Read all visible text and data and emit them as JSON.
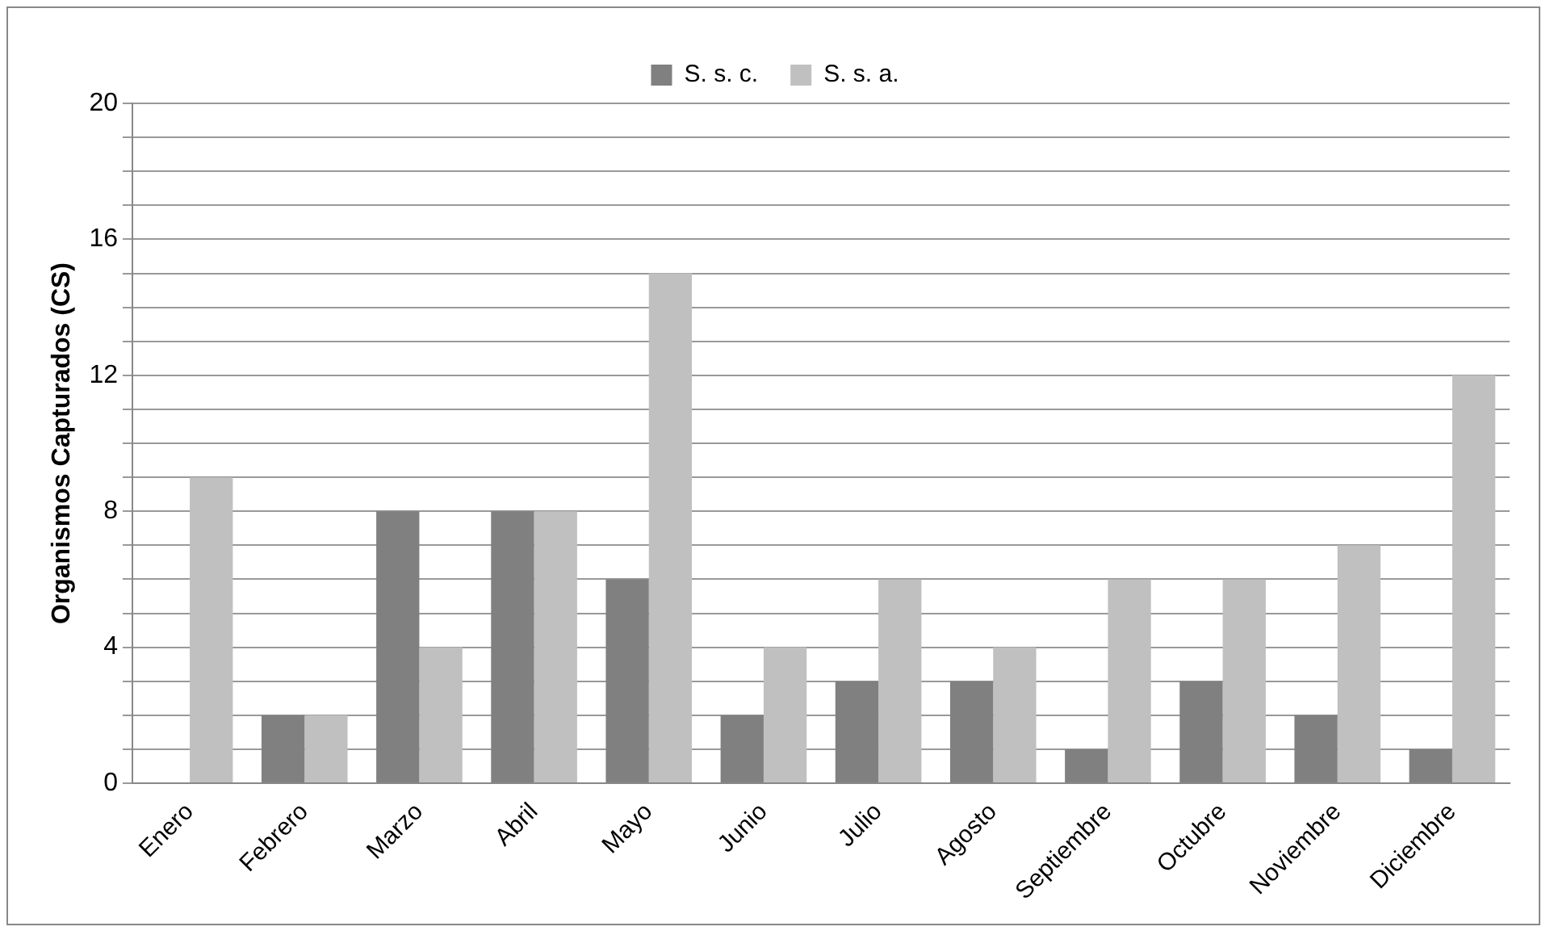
{
  "chart_data": {
    "type": "bar",
    "ylabel": "Organismos Capturados (CS)",
    "categories": [
      "Enero",
      "Febrero",
      "Marzo",
      "Abril",
      "Mayo",
      "Junio",
      "Julio",
      "Agosto",
      "Septiembre",
      "Octubre",
      "Noviembre",
      "Diciembre"
    ],
    "series": [
      {
        "name": "S. s. c.",
        "color": "#808080",
        "values": [
          0,
          2,
          8,
          8,
          6,
          2,
          3,
          3,
          1,
          3,
          2,
          1
        ]
      },
      {
        "name": "S. s. a.",
        "color": "#c0c0c0",
        "values": [
          9,
          2,
          4,
          8,
          15,
          4,
          6,
          4,
          6,
          6,
          7,
          12
        ]
      }
    ],
    "ylim": [
      0,
      20
    ],
    "yticks": [
      0,
      {
        "value": 1,
        "label": null
      },
      {
        "value": 2,
        "label": null
      },
      {
        "value": 3,
        "label": null
      },
      4,
      {
        "value": 5,
        "label": null
      },
      {
        "value": 6,
        "label": null
      },
      {
        "value": 7,
        "label": null
      },
      8,
      {
        "value": 9,
        "label": null
      },
      {
        "value": 10,
        "label": null
      },
      {
        "value": 11,
        "label": null
      },
      12,
      {
        "value": 13,
        "label": null
      },
      {
        "value": 14,
        "label": null
      },
      {
        "value": 15,
        "label": null
      },
      16,
      {
        "value": 17,
        "label": null
      },
      {
        "value": 18,
        "label": null
      },
      {
        "value": 19,
        "label": null
      },
      20
    ],
    "grid": "y",
    "legend": "top"
  }
}
